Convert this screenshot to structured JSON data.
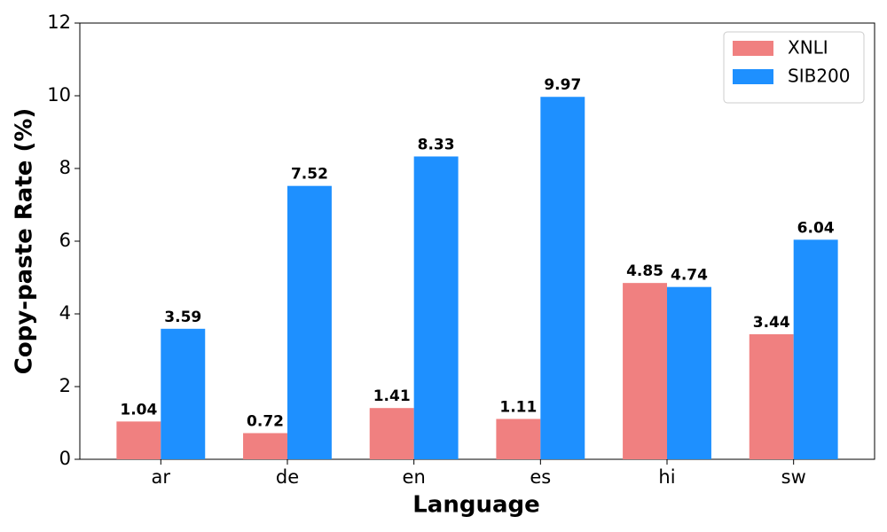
{
  "chart_data": {
    "type": "bar",
    "x_label": "Language",
    "y_label": "Copy-paste Rate (%)",
    "categories": [
      "ar",
      "de",
      "en",
      "es",
      "hi",
      "sw"
    ],
    "series": [
      {
        "name": "XNLI",
        "color": "#f08080",
        "values": [
          1.04,
          0.72,
          1.41,
          1.11,
          4.85,
          3.44
        ]
      },
      {
        "name": "SIB200",
        "color": "#1e90ff",
        "values": [
          3.59,
          7.52,
          8.33,
          9.97,
          4.74,
          6.04
        ]
      }
    ],
    "ylim": [
      0,
      12
    ],
    "yticks": [
      0,
      2,
      4,
      6,
      8,
      10,
      12
    ],
    "grid": false,
    "legend": "upper right"
  }
}
